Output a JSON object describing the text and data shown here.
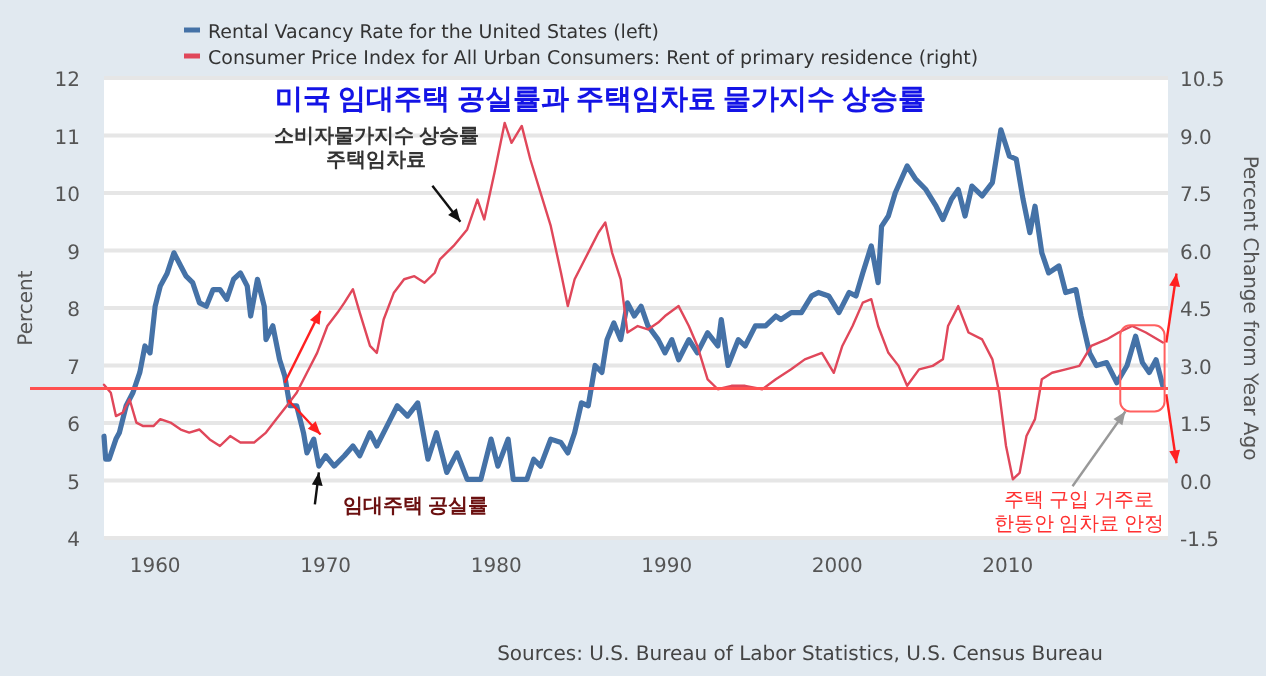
{
  "chart_data": {
    "type": "line",
    "title": "미국 임대주택 공실률과 주택임차료 물가지수 상승률",
    "ylabel": "Percent",
    "y2label": "Percent Change from Year Ago",
    "xlim": [
      1957,
      2019.4
    ],
    "xticks": [
      1960,
      1970,
      1980,
      1990,
      2000,
      2010
    ],
    "ylim": [
      4,
      12
    ],
    "yticks": [
      4,
      5,
      6,
      7,
      8,
      9,
      10,
      11,
      12
    ],
    "y2lim": [
      -1.5,
      10.5
    ],
    "y2ticks": [
      {
        "value": -1.5,
        "label": "-1.5"
      },
      {
        "value": 0,
        "label": "0.0"
      },
      {
        "value": 1.5,
        "label": "1.5"
      },
      {
        "value": 3,
        "label": "3.0"
      },
      {
        "value": 4.5,
        "label": "4.5"
      },
      {
        "value": 6,
        "label": "6.0"
      },
      {
        "value": 7.5,
        "label": "7.5"
      },
      {
        "value": 9,
        "label": "9.0"
      },
      {
        "value": 10.5,
        "label": "10.5"
      }
    ],
    "grid": "y",
    "legend": "top left",
    "ref_lines": [
      {
        "axis": "y",
        "value": 6.6,
        "color": "#ff5050"
      }
    ],
    "series": [
      {
        "name": "Rental Vacancy Rate for the United States (left)",
        "color": "#4572a7",
        "x": [
          1957.0,
          1957.1,
          1957.3,
          1957.7,
          1957.9,
          1958.3,
          1958.7,
          1959.1,
          1959.4,
          1959.7,
          1960.0,
          1960.3,
          1960.7,
          1961.1,
          1961.5,
          1961.8,
          1962.2,
          1962.6,
          1963.0,
          1963.4,
          1963.8,
          1964.2,
          1964.6,
          1965.0,
          1965.4,
          1965.6,
          1966.0,
          1966.4,
          1966.5,
          1966.9,
          1967.3,
          1967.6,
          1967.9,
          1968.3,
          1968.7,
          1968.9,
          1969.3,
          1969.6,
          1970.0,
          1970.5,
          1971.1,
          1971.6,
          1972.0,
          1972.6,
          1973.0,
          1973.6,
          1974.2,
          1974.8,
          1975.4,
          1976.0,
          1976.5,
          1977.1,
          1977.7,
          1978.3,
          1979.1,
          1979.7,
          1980.1,
          1980.7,
          1981.0,
          1981.8,
          1982.2,
          1982.6,
          1983.2,
          1983.8,
          1984.2,
          1984.6,
          1985.0,
          1985.4,
          1985.8,
          1986.2,
          1986.5,
          1986.9,
          1987.3,
          1987.7,
          1988.1,
          1988.5,
          1988.9,
          1989.5,
          1989.9,
          1990.3,
          1990.7,
          1991.3,
          1991.8,
          1992.4,
          1993.0,
          1993.2,
          1993.6,
          1994.2,
          1994.6,
          1995.2,
          1995.8,
          1996.4,
          1996.7,
          1997.3,
          1997.9,
          1998.5,
          1998.9,
          1999.5,
          2000.1,
          2000.7,
          2001.1,
          2001.5,
          2002.0,
          2002.4,
          2002.6,
          2003.0,
          2003.4,
          2004.1,
          2004.6,
          2005.2,
          2005.8,
          2006.2,
          2006.7,
          2007.1,
          2007.5,
          2007.9,
          2008.5,
          2009.1,
          2009.6,
          2010.1,
          2010.5,
          2010.9,
          2011.3,
          2011.6,
          2012.0,
          2012.4,
          2013.0,
          2013.4,
          2014.0,
          2014.3,
          2014.8,
          2015.2,
          2015.8,
          2016.4,
          2017.0,
          2017.5,
          2017.9,
          2018.3,
          2018.7,
          2019.1
        ],
        "values": [
          5.77,
          5.37,
          5.37,
          5.72,
          5.83,
          6.3,
          6.53,
          6.88,
          7.34,
          7.22,
          8.03,
          8.38,
          8.6,
          8.96,
          8.73,
          8.56,
          8.44,
          8.09,
          8.03,
          8.32,
          8.32,
          8.15,
          8.5,
          8.61,
          8.38,
          7.86,
          8.5,
          8.03,
          7.45,
          7.69,
          7.1,
          6.82,
          6.3,
          6.3,
          5.83,
          5.48,
          5.72,
          5.25,
          5.43,
          5.25,
          5.43,
          5.6,
          5.43,
          5.83,
          5.6,
          5.95,
          6.3,
          6.12,
          6.35,
          5.37,
          5.83,
          5.14,
          5.48,
          5.02,
          5.02,
          5.72,
          5.25,
          5.72,
          5.02,
          5.02,
          5.37,
          5.25,
          5.72,
          5.66,
          5.48,
          5.83,
          6.35,
          6.3,
          7.0,
          6.88,
          7.45,
          7.74,
          7.45,
          8.09,
          7.86,
          8.03,
          7.69,
          7.45,
          7.22,
          7.45,
          7.1,
          7.45,
          7.22,
          7.57,
          7.34,
          7.8,
          7.0,
          7.45,
          7.34,
          7.69,
          7.69,
          7.86,
          7.8,
          7.92,
          7.92,
          8.21,
          8.27,
          8.21,
          7.92,
          8.27,
          8.21,
          8.61,
          9.08,
          8.44,
          9.42,
          9.6,
          10.0,
          10.47,
          10.24,
          10.06,
          9.77,
          9.54,
          9.89,
          10.06,
          9.6,
          10.12,
          9.95,
          10.18,
          11.1,
          10.64,
          10.59,
          9.89,
          9.31,
          9.77,
          8.96,
          8.61,
          8.73,
          8.27,
          8.32,
          7.86,
          7.22,
          7.0,
          7.05,
          6.7,
          7.0,
          7.51,
          7.05,
          6.88,
          7.1,
          6.64
        ]
      },
      {
        "name": "Consumer Price Index for All Urban Consumers: Rent of primary residence (right)",
        "color": "#e0475a",
        "axis": "y2",
        "x": [
          1957.0,
          1957.4,
          1957.7,
          1958.1,
          1958.5,
          1958.9,
          1959.3,
          1959.9,
          1960.3,
          1960.9,
          1961.5,
          1962.0,
          1962.6,
          1963.2,
          1963.8,
          1964.4,
          1965.0,
          1965.8,
          1966.5,
          1967.1,
          1967.7,
          1968.3,
          1968.9,
          1969.5,
          1970.1,
          1970.7,
          1971.1,
          1971.6,
          1972.0,
          1972.6,
          1973.0,
          1973.4,
          1974.0,
          1974.6,
          1975.2,
          1975.8,
          1976.4,
          1976.7,
          1977.5,
          1978.3,
          1978.9,
          1979.3,
          1979.9,
          1980.5,
          1980.9,
          1981.5,
          1982.0,
          1982.6,
          1983.2,
          1983.8,
          1984.2,
          1984.6,
          1985.2,
          1985.6,
          1986.0,
          1986.4,
          1986.8,
          1987.3,
          1987.7,
          1988.3,
          1988.9,
          1989.5,
          1989.9,
          1990.7,
          1991.3,
          1991.8,
          1992.4,
          1993.0,
          1993.8,
          1994.6,
          1995.6,
          1996.4,
          1997.3,
          1998.1,
          1999.1,
          1999.8,
          2000.3,
          2000.9,
          2001.5,
          2002.0,
          2002.4,
          2003.0,
          2003.6,
          2004.1,
          2004.8,
          2005.6,
          2006.2,
          2006.5,
          2007.1,
          2007.7,
          2008.5,
          2009.1,
          2009.5,
          2009.9,
          2010.3,
          2010.7,
          2011.1,
          2011.6,
          2012.0,
          2012.6,
          2013.4,
          2014.2,
          2014.9,
          2015.8,
          2016.5,
          2017.3,
          2018.1,
          2019.1
        ],
        "values": [
          2.5,
          2.29,
          1.68,
          1.77,
          2.12,
          1.51,
          1.42,
          1.42,
          1.6,
          1.51,
          1.33,
          1.25,
          1.33,
          1.07,
          0.9,
          1.16,
          0.99,
          0.99,
          1.25,
          1.6,
          1.94,
          2.29,
          2.81,
          3.33,
          4.03,
          4.38,
          4.64,
          4.99,
          4.38,
          3.51,
          3.33,
          4.2,
          4.9,
          5.25,
          5.33,
          5.16,
          5.42,
          5.77,
          6.12,
          6.55,
          7.33,
          6.81,
          8.03,
          9.33,
          8.81,
          9.25,
          8.38,
          7.51,
          6.64,
          5.42,
          4.55,
          5.25,
          5.77,
          6.12,
          6.47,
          6.73,
          5.94,
          5.25,
          3.86,
          4.03,
          3.94,
          4.12,
          4.29,
          4.55,
          4.03,
          3.51,
          2.64,
          2.38,
          2.47,
          2.47,
          2.38,
          2.64,
          2.9,
          3.16,
          3.33,
          2.81,
          3.51,
          4.03,
          4.64,
          4.73,
          4.03,
          3.33,
          2.99,
          2.47,
          2.9,
          2.99,
          3.16,
          4.03,
          4.55,
          3.86,
          3.68,
          3.16,
          2.29,
          0.9,
          0.03,
          0.2,
          1.16,
          1.6,
          2.64,
          2.81,
          2.9,
          2.99,
          3.51,
          3.68,
          3.86,
          4.03,
          3.86,
          3.6
        ]
      }
    ],
    "annotations": [
      {
        "text": "소비자물가지수 상승률\n주택임차료",
        "x": 1977.9,
        "y": 9.5
      },
      {
        "text": "임대주택 공실률",
        "x": 1969.6,
        "y": 5.14
      },
      "주택 구입 거주로\n한동안 임차료 안정",
      "Sources: U.S. Bureau of Labor Statistics, U.S. Census Bureau"
    ]
  }
}
